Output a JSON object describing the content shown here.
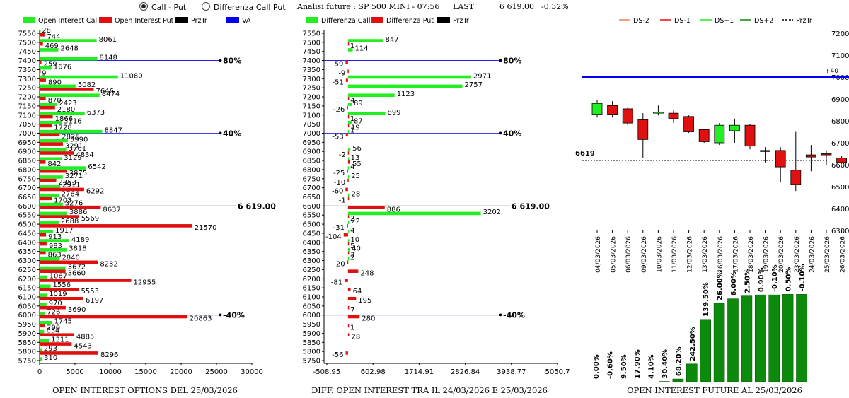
{
  "header": {
    "radio_call_put": "Call - Put",
    "radio_diff": "Differenza Call Put",
    "analysis_label": "Analisi future : SP 500 MINI - 07:56",
    "last_label": "LAST",
    "last_value": "6 619.00",
    "last_change": "-0.32%"
  },
  "colors": {
    "green": "#22ee22",
    "red": "#e01010",
    "black": "#000000",
    "blue": "#0000ee",
    "darkgreen": "#0b8a0b"
  },
  "chart_data": [
    {
      "id": "oi",
      "type": "bar",
      "orientation": "horizontal",
      "title": "OPEN INTEREST OPTIONS DEL 25/03/2026",
      "legend": [
        "Open Interest Call",
        "Open Interest Put",
        "PrzTr",
        "VA"
      ],
      "strikes": [
        "7550",
        "7500",
        "7450",
        "7400",
        "7350",
        "7300",
        "7250",
        "7200",
        "7150",
        "7100",
        "7050",
        "7000",
        "6950",
        "6900",
        "6850",
        "6800",
        "6750",
        "6700",
        "6650",
        "6600",
        "6550",
        "6500",
        "6450",
        "6400",
        "6350",
        "6300",
        "6250",
        "6200",
        "6150",
        "6100",
        "6050",
        "6000",
        "5950",
        "5900",
        "5850",
        "5800",
        "5750"
      ],
      "calls": [
        28,
        8061,
        2648,
        8148,
        1676,
        11080,
        5082,
        8474,
        2423,
        6373,
        3116,
        8847,
        3990,
        3761,
        3129,
        6542,
        3271,
        2911,
        2764,
        3276,
        3886,
        2688,
        1917,
        4189,
        3818,
        2840,
        3672,
        1067,
        1556,
        1019,
        970,
        726,
        1745,
        634,
        1311,
        293,
        310
      ],
      "puts": [
        744,
        469,
        0,
        259,
        9,
        890,
        7646,
        870,
        2180,
        1866,
        1728,
        2825,
        3291,
        4834,
        842,
        3875,
        2353,
        6292,
        1703,
        8637,
        5569,
        21570,
        913,
        983,
        863,
        8232,
        3660,
        12955,
        5553,
        6197,
        3690,
        20863,
        700,
        4885,
        4543,
        8296,
        0
      ],
      "xticks": [
        0,
        5000,
        10000,
        15000,
        20000,
        25000,
        30000
      ],
      "xrange": [
        0,
        30000
      ],
      "markers": [
        {
          "strike": "7400",
          "label": "80%"
        },
        {
          "strike": "7000",
          "label": "40%"
        },
        {
          "strike": "6000",
          "label": "-40%"
        }
      ],
      "price_line": {
        "strike": "6600",
        "label": "6 619.00"
      }
    },
    {
      "id": "diff",
      "type": "bar",
      "orientation": "horizontal",
      "title": "DIFF. OPEN INTEREST TRA IL 24/03/2026 E 25/03/2026",
      "legend": [
        "Differenza Call",
        "Differenza Put",
        "PrzTr"
      ],
      "strikes": [
        "7550",
        "7500",
        "7450",
        "7400",
        "7350",
        "7300",
        "7250",
        "7200",
        "7150",
        "7100",
        "7050",
        "7000",
        "6950",
        "6900",
        "6850",
        "6800",
        "6750",
        "6700",
        "6650",
        "6600",
        "6550",
        "6500",
        "6450",
        "6400",
        "6350",
        "6300",
        "6250",
        "6200",
        "6150",
        "6100",
        "6050",
        "6000",
        "5950",
        "5900",
        "5850",
        "5800",
        "5750"
      ],
      "calls": [
        0,
        847,
        114,
        0,
        0,
        2971,
        2757,
        1123,
        89,
        899,
        87,
        1,
        0,
        56,
        13,
        4,
        25,
        0,
        28,
        0,
        3202,
        22,
        4,
        10,
        40,
        2,
        0,
        0,
        0,
        0,
        0,
        0,
        0,
        0,
        0,
        0,
        0
      ],
      "puts": [
        0,
        1,
        0,
        -59,
        -9,
        -51,
        0,
        4,
        -26,
        1,
        19,
        -53,
        0,
        -2,
        55,
        -25,
        -10,
        -60,
        -1,
        886,
        2,
        -31,
        -104,
        5,
        3,
        -20,
        248,
        -81,
        64,
        195,
        7,
        280,
        1,
        28,
        0,
        -56,
        0
      ],
      "xticks": [
        "-508.95",
        "602.98",
        "1714.91",
        "2826.84",
        "3938.77",
        "5050.7"
      ],
      "xrange": [
        -508.95,
        5050.7
      ],
      "markers": [
        {
          "strike": "7400",
          "label": "80%"
        },
        {
          "strike": "7000",
          "label": "40%"
        },
        {
          "strike": "6000",
          "label": "-40%"
        }
      ],
      "price_line": {
        "strike": "6600",
        "label": "6 619.00"
      }
    },
    {
      "id": "candles",
      "type": "candlestick",
      "legend": [
        "DS-2",
        "DS-1",
        "DS+1",
        "DS+2",
        "PrzTr"
      ],
      "dates": [
        "04/03/2026",
        "05/03/2026",
        "06/03/2026",
        "09/03/2026",
        "10/03/2026",
        "11/03/2026",
        "12/03/2026",
        "13/03/2026",
        "16/03/2026",
        "17/03/2026",
        "18/03/2026",
        "19/03/2026",
        "20/03/2026",
        "23/03/2026",
        "24/03/2026",
        "25/03/2026",
        "26/03/2026"
      ],
      "open": [
        6830,
        6870,
        6855,
        6805,
        6840,
        6835,
        6820,
        6760,
        6700,
        6755,
        6780,
        6665,
        6665,
        6575,
        6645,
        6650,
        6630
      ],
      "close": [
        6880,
        6830,
        6790,
        6715,
        6840,
        6810,
        6750,
        6705,
        6780,
        6780,
        6685,
        6665,
        6590,
        6510,
        6635,
        6645,
        6610
      ],
      "high": [
        6895,
        6890,
        6860,
        6835,
        6870,
        6850,
        6825,
        6760,
        6790,
        6810,
        6785,
        6680,
        6680,
        6750,
        6690,
        6665,
        6640
      ],
      "low": [
        6815,
        6815,
        6780,
        6630,
        6825,
        6790,
        6745,
        6700,
        6690,
        6700,
        6670,
        6610,
        6520,
        6480,
        6570,
        6600,
        6605
      ],
      "yticks": [
        6300,
        6400,
        6500,
        6600,
        6700,
        6800,
        6900,
        7000,
        7100,
        7200
      ],
      "yrange": [
        6300,
        7200
      ],
      "blue_line": {
        "value": 7000,
        "label": "+40"
      },
      "price_line": {
        "value": 6619,
        "label": "6619"
      }
    },
    {
      "id": "future_oi",
      "type": "bar",
      "title": "OPEN INTEREST FUTURE AL 25/03/2026",
      "labels": [
        "0.00%",
        "-0.60%",
        "9.50%",
        "17.90%",
        "4.10%",
        "30.40%",
        "68.20%",
        "242.50%",
        "139.50%",
        "26.00%",
        "6.00%",
        "2.50%",
        "0.90%",
        "-0.10%",
        "0.50%",
        "-0.10%"
      ],
      "values": [
        0,
        0,
        0,
        0,
        0,
        0.5,
        5,
        32,
        112,
        141,
        149,
        154,
        156,
        156,
        157,
        157
      ],
      "ymax": 160
    }
  ]
}
